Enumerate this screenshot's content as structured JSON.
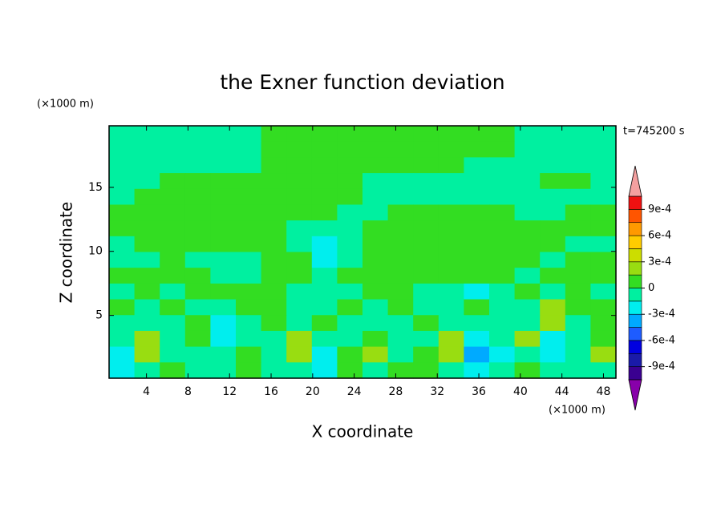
{
  "chart_data": {
    "type": "contourf",
    "title": "the Exner function deviation",
    "time_label": "t=745200 s",
    "xlabel": "X coordinate",
    "ylabel": "Z coordinate",
    "x_unit": "(×1000 m)",
    "y_unit": "(×1000 m)",
    "xlim": [
      0.4,
      49.2
    ],
    "ylim": [
      0.1,
      19.8
    ],
    "xticks": [
      4,
      8,
      12,
      16,
      20,
      24,
      28,
      32,
      36,
      40,
      44,
      48
    ],
    "yticks": [
      5,
      10,
      15
    ],
    "levels": [
      -0.00105,
      -0.0009,
      -0.00075,
      -0.0006,
      -0.00045,
      -0.0003,
      -0.00015,
      0,
      0.00015,
      0.0003,
      0.00045,
      0.0006,
      0.00075,
      0.0009,
      0.00105
    ],
    "colors": [
      "#6a00aa",
      "#3a0090",
      "#1a1aa8",
      "#0000e0",
      "#1e5cff",
      "#00aaff",
      "#00eeee",
      "#00f0a0",
      "#33dd22",
      "#99dd11",
      "#ccdd00",
      "#ffcc00",
      "#ff9900",
      "#ff5500",
      "#ee1111"
    ],
    "under_color": "#8800aa",
    "over_color": "#f4a0a0",
    "colorbar_ticks": [
      {
        "value": 0.0009,
        "label": "9e-4"
      },
      {
        "value": 0.0006,
        "label": "6e-4"
      },
      {
        "value": 0.0003,
        "label": "3e-4"
      },
      0,
      {
        "value": -0.0003,
        "label": "-3e-4"
      },
      {
        "value": -0.0006,
        "label": "-6e-4"
      },
      {
        "value": -0.0009,
        "label": "-9e-4"
      }
    ],
    "z": [
      [
        -5e-05,
        -5e-05,
        -5e-05,
        -5e-05,
        -5e-05,
        -5e-05,
        5e-05,
        5e-05,
        5e-05,
        5e-05,
        5e-05,
        5e-05,
        5e-05,
        5e-05,
        5e-05,
        5e-05,
        -5e-05,
        -5e-05,
        -5e-05,
        -5e-05
      ],
      [
        -5e-05,
        -5e-05,
        -5e-05,
        -5e-05,
        -5e-05,
        -5e-05,
        5e-05,
        5e-05,
        5e-05,
        5e-05,
        5e-05,
        5e-05,
        5e-05,
        5e-05,
        5e-05,
        5e-05,
        -5e-05,
        -5e-05,
        -5e-05,
        -5e-05
      ],
      [
        -5e-05,
        -5e-05,
        -5e-05,
        -5e-05,
        -5e-05,
        -5e-05,
        5e-05,
        5e-05,
        5e-05,
        5e-05,
        5e-05,
        5e-05,
        5e-05,
        5e-05,
        -5e-05,
        -5e-05,
        -5e-05,
        -5e-05,
        -5e-05,
        -5e-05
      ],
      [
        -5e-05,
        -5e-05,
        5e-05,
        5e-05,
        5e-05,
        5e-05,
        5e-05,
        5e-05,
        5e-05,
        5e-05,
        -5e-05,
        -5e-05,
        -5e-05,
        -5e-05,
        -5e-05,
        -5e-05,
        -5e-05,
        5e-05,
        5e-05,
        -5e-05
      ],
      [
        -5e-05,
        5e-05,
        5e-05,
        5e-05,
        5e-05,
        5e-05,
        5e-05,
        5e-05,
        5e-05,
        5e-05,
        -5e-05,
        -5e-05,
        -5e-05,
        -5e-05,
        -5e-05,
        -5e-05,
        -5e-05,
        -5e-05,
        -5e-05,
        -5e-05
      ],
      [
        5e-05,
        5e-05,
        5e-05,
        5e-05,
        5e-05,
        5e-05,
        5e-05,
        5e-05,
        5e-05,
        -5e-05,
        -5e-05,
        5e-05,
        5e-05,
        5e-05,
        5e-05,
        5e-05,
        -5e-05,
        -5e-05,
        5e-05,
        5e-05
      ],
      [
        5e-05,
        5e-05,
        5e-05,
        5e-05,
        5e-05,
        5e-05,
        5e-05,
        -5e-05,
        -5e-05,
        -5e-05,
        5e-05,
        5e-05,
        5e-05,
        5e-05,
        5e-05,
        5e-05,
        5e-05,
        5e-05,
        5e-05,
        5e-05
      ],
      [
        -5e-05,
        5e-05,
        5e-05,
        5e-05,
        5e-05,
        5e-05,
        5e-05,
        -5e-05,
        -0.0002,
        -5e-05,
        5e-05,
        5e-05,
        5e-05,
        5e-05,
        5e-05,
        5e-05,
        5e-05,
        5e-05,
        -5e-05,
        -5e-05
      ],
      [
        -5e-05,
        -5e-05,
        5e-05,
        -5e-05,
        -5e-05,
        -5e-05,
        5e-05,
        5e-05,
        -0.0002,
        -5e-05,
        5e-05,
        5e-05,
        5e-05,
        5e-05,
        5e-05,
        5e-05,
        5e-05,
        -5e-05,
        5e-05,
        5e-05
      ],
      [
        5e-05,
        5e-05,
        5e-05,
        5e-05,
        -5e-05,
        -5e-05,
        5e-05,
        5e-05,
        -5e-05,
        5e-05,
        5e-05,
        5e-05,
        5e-05,
        5e-05,
        5e-05,
        5e-05,
        -5e-05,
        5e-05,
        5e-05,
        5e-05
      ],
      [
        -5e-05,
        5e-05,
        -5e-05,
        5e-05,
        5e-05,
        5e-05,
        5e-05,
        -5e-05,
        -5e-05,
        -5e-05,
        5e-05,
        5e-05,
        -5e-05,
        -5e-05,
        -0.0002,
        -5e-05,
        5e-05,
        -5e-05,
        5e-05,
        -5e-05
      ],
      [
        5e-05,
        -5e-05,
        5e-05,
        -5e-05,
        -5e-05,
        5e-05,
        5e-05,
        -5e-05,
        -5e-05,
        5e-05,
        -5e-05,
        5e-05,
        -5e-05,
        -5e-05,
        5e-05,
        -5e-05,
        -5e-05,
        0.0002,
        5e-05,
        5e-05
      ],
      [
        -5e-05,
        -5e-05,
        -5e-05,
        5e-05,
        -0.0002,
        -5e-05,
        5e-05,
        -5e-05,
        5e-05,
        -5e-05,
        -5e-05,
        -5e-05,
        5e-05,
        -5e-05,
        -5e-05,
        -5e-05,
        -5e-05,
        0.0002,
        -5e-05,
        5e-05
      ],
      [
        -5e-05,
        0.0002,
        -5e-05,
        5e-05,
        -0.0002,
        -5e-05,
        -5e-05,
        0.0002,
        -5e-05,
        -5e-05,
        5e-05,
        -5e-05,
        -5e-05,
        0.0002,
        -0.0002,
        -5e-05,
        0.0002,
        -0.0002,
        -5e-05,
        5e-05
      ],
      [
        -0.0002,
        0.0002,
        -5e-05,
        -5e-05,
        -5e-05,
        5e-05,
        -5e-05,
        0.0002,
        -0.0002,
        5e-05,
        0.0002,
        -5e-05,
        5e-05,
        0.0002,
        -0.0004,
        -0.0002,
        -5e-05,
        -0.0002,
        -5e-05,
        0.0002
      ],
      [
        -0.0002,
        -5e-05,
        5e-05,
        -5e-05,
        -5e-05,
        5e-05,
        -5e-05,
        -5e-05,
        -0.0002,
        5e-05,
        -5e-05,
        5e-05,
        5e-05,
        -5e-05,
        -0.0002,
        -5e-05,
        5e-05,
        -5e-05,
        -5e-05,
        -5e-05
      ]
    ]
  }
}
